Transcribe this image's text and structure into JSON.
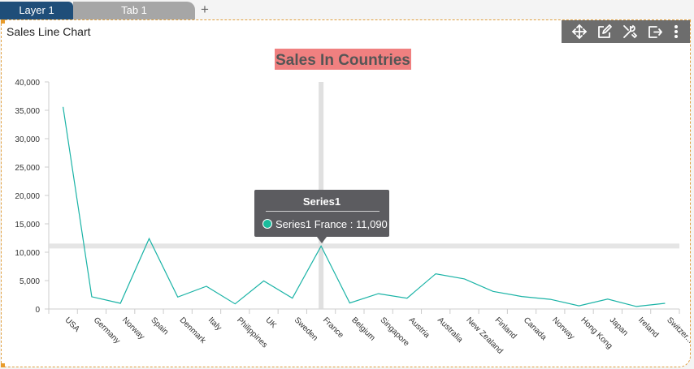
{
  "tabs": {
    "layer_label": "Layer 1",
    "tab_label": "Tab 1",
    "add_label": "+"
  },
  "panel": {
    "title": "Sales Line Chart"
  },
  "toolbar": {
    "icons": [
      "move-icon",
      "edit-icon",
      "tools-icon",
      "export-icon",
      "more-icon"
    ]
  },
  "tooltip": {
    "title": "Series1",
    "text": "Series1 France : 11,090"
  },
  "chart_data": {
    "type": "line",
    "title": "Sales In Countries",
    "title_bg": "#f08080",
    "title_color": "#555555",
    "line_color": "#1ab3a6",
    "xlabel": "",
    "ylabel": "",
    "ylim": [
      0,
      40000
    ],
    "yticks": [
      "0",
      "5,000",
      "10,000",
      "15,000",
      "20,000",
      "25,000",
      "30,000",
      "35,000",
      "40,000"
    ],
    "categories": [
      "USA",
      "Germany",
      "Norway",
      "Spain",
      "Denmark",
      "Italy",
      "Philippines",
      "UK",
      "Sweden",
      "France",
      "Belgium",
      "Singapore",
      "Austria",
      "Australia",
      "New Zealand",
      "Finland",
      "Canada",
      "Norway",
      "Hong Kong",
      "Japan",
      "Ireland",
      "Switzer..."
    ],
    "series": [
      {
        "values": [
          35600,
          2150,
          1000,
          12400,
          2100,
          4000,
          900,
          4950,
          1900,
          11090,
          1050,
          2700,
          1900,
          6200,
          5300,
          3100,
          2200,
          1700,
          550,
          1750,
          450,
          1000
        ]
      }
    ],
    "highlight_index": 9,
    "grid": false,
    "legend": "none"
  }
}
